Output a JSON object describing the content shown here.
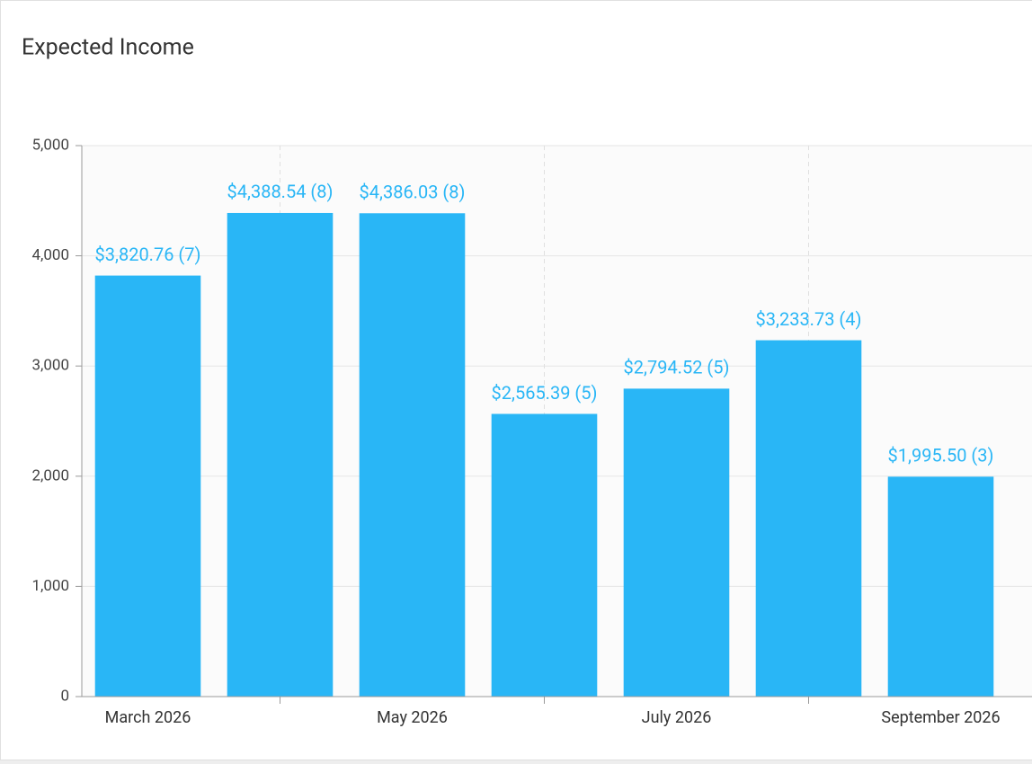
{
  "chart_data": {
    "type": "bar",
    "title": "Expected Income",
    "categories": [
      "March 2026",
      null,
      "May 2026",
      null,
      "July 2026",
      null,
      "September 2026"
    ],
    "values": [
      3820.76,
      4388.54,
      4386.03,
      2565.39,
      2794.52,
      3233.73,
      1995.5
    ],
    "value_labels": [
      "$3,820.76 (7)",
      "$4,388.54 (8)",
      "$4,386.03 (8)",
      "$2,565.39 (5)",
      "$2,794.52 (5)",
      "$3,233.73 (4)",
      "$1,995.50 (3)"
    ],
    "color": "#29b6f6",
    "ylim": [
      0,
      5000
    ],
    "yticks": [
      0,
      {
        "value": 1000,
        "label": "1,000"
      },
      {
        "value": 2000,
        "label": "2,000"
      },
      {
        "value": 3000,
        "label": "3,000"
      },
      {
        "value": 4000,
        "label": "4,000"
      },
      {
        "value": 5000,
        "label": "5,000"
      }
    ],
    "grid": true
  }
}
